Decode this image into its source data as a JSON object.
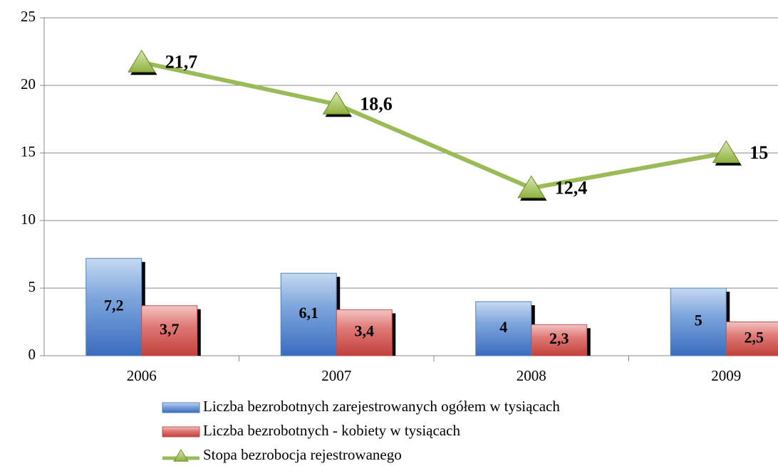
{
  "chart_data": {
    "type": "bar",
    "categories": [
      "2006",
      "2007",
      "2008",
      "2009"
    ],
    "series": [
      {
        "name": "Liczba bezrobotnych zarejestrowanych ogółem w tysiącach",
        "color": "#4f81bd",
        "values": [
          7.2,
          6.1,
          4,
          5
        ],
        "value_labels": [
          "7,2",
          "6,1",
          "4",
          "5"
        ]
      },
      {
        "name": "Liczba bezrobotnych - kobiety w tysiącach",
        "color": "#c0504d",
        "values": [
          3.7,
          3.4,
          2.3,
          2.5
        ],
        "value_labels": [
          "3,7",
          "3,4",
          "2,3",
          "2,5"
        ]
      },
      {
        "name": "Stopa bezrobocja rejestrowanego",
        "color": "#9bbb59",
        "type": "line",
        "values": [
          21.7,
          18.6,
          12.4,
          15
        ],
        "value_labels": [
          "21,7",
          "18,6",
          "12,4",
          "15"
        ]
      }
    ],
    "ylim": [
      0,
      25
    ],
    "yticks": [
      0,
      5,
      10,
      15,
      20,
      25
    ],
    "grid": true,
    "legend": "bottom"
  }
}
